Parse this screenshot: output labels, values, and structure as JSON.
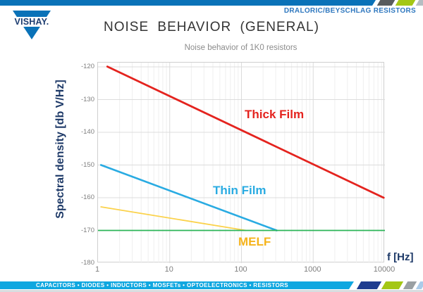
{
  "colors": {
    "vishay_blue": "#0a72b8",
    "division_blue": "#2f78bf",
    "title_gray": "#343434",
    "chart_title_gray": "#8c8c8c",
    "axis_navy": "#1e3a68",
    "tick_gray": "#7f7f7f",
    "footer_cyan": "#0fa7e0",
    "chevron_navy": "#1e3c8f",
    "chevron_lime": "#a4c715",
    "chevron_gray": "#9aa0a3",
    "chevron_lightblue": "#aacbe9",
    "chevron_slate": "#585c5e"
  },
  "header": {
    "brand": "VISHAY.",
    "division_label": "DRALORIC/BEYSCHLAG RESISTORS",
    "title": "NOISE BEHAVIOR (GENERAL)"
  },
  "footer": {
    "products_line": "CAPACITORS • DIODES • INDUCTORS • MOSFETs • OPTOELECTRONICS • RESISTORS"
  },
  "chart_data": {
    "type": "line",
    "title": "Noise behavior of 1K0 resistors",
    "xlabel": "f [Hz]",
    "ylabel": "Spectral density [db V/Hz]",
    "x_scale": "log",
    "xlim": [
      1,
      10000
    ],
    "ylim": [
      -180,
      -118.7
    ],
    "x_ticks": [
      1,
      10,
      100,
      1000,
      10000
    ],
    "x_tick_labels": [
      "1",
      "10",
      "100",
      "1000",
      "10000"
    ],
    "y_ticks": [
      -120,
      -130,
      -140,
      -150,
      -160,
      -170,
      -180
    ],
    "y_tick_labels": [
      "-120",
      "-130",
      "-140",
      "-150",
      "-160",
      "-170",
      "-180"
    ],
    "grid": true,
    "legend_position": "inline-labels",
    "series": [
      {
        "name": "Thick Film",
        "color": "#e4231e",
        "label_color": "#e4231e",
        "stroke_width": 2.8,
        "points": [
          [
            1.35,
            -119.9
          ],
          [
            9600,
            -160
          ]
        ]
      },
      {
        "name": "Thin Film",
        "color": "#29abe2",
        "label_color": "#29abe2",
        "stroke_width": 2.6,
        "points": [
          [
            1.1,
            -150
          ],
          [
            310,
            -170
          ]
        ]
      },
      {
        "name": "MELF",
        "color": "#fbd24b",
        "label_color": "#f5b31b",
        "stroke_width": 1.8,
        "points": [
          [
            1.1,
            -162.8
          ],
          [
            115,
            -170
          ]
        ]
      },
      {
        "name": "",
        "color": "#2bb457",
        "label_color": "#2bb457",
        "stroke_width": 1.8,
        "points": [
          [
            1,
            -170
          ],
          [
            10000,
            -170
          ]
        ]
      }
    ]
  }
}
